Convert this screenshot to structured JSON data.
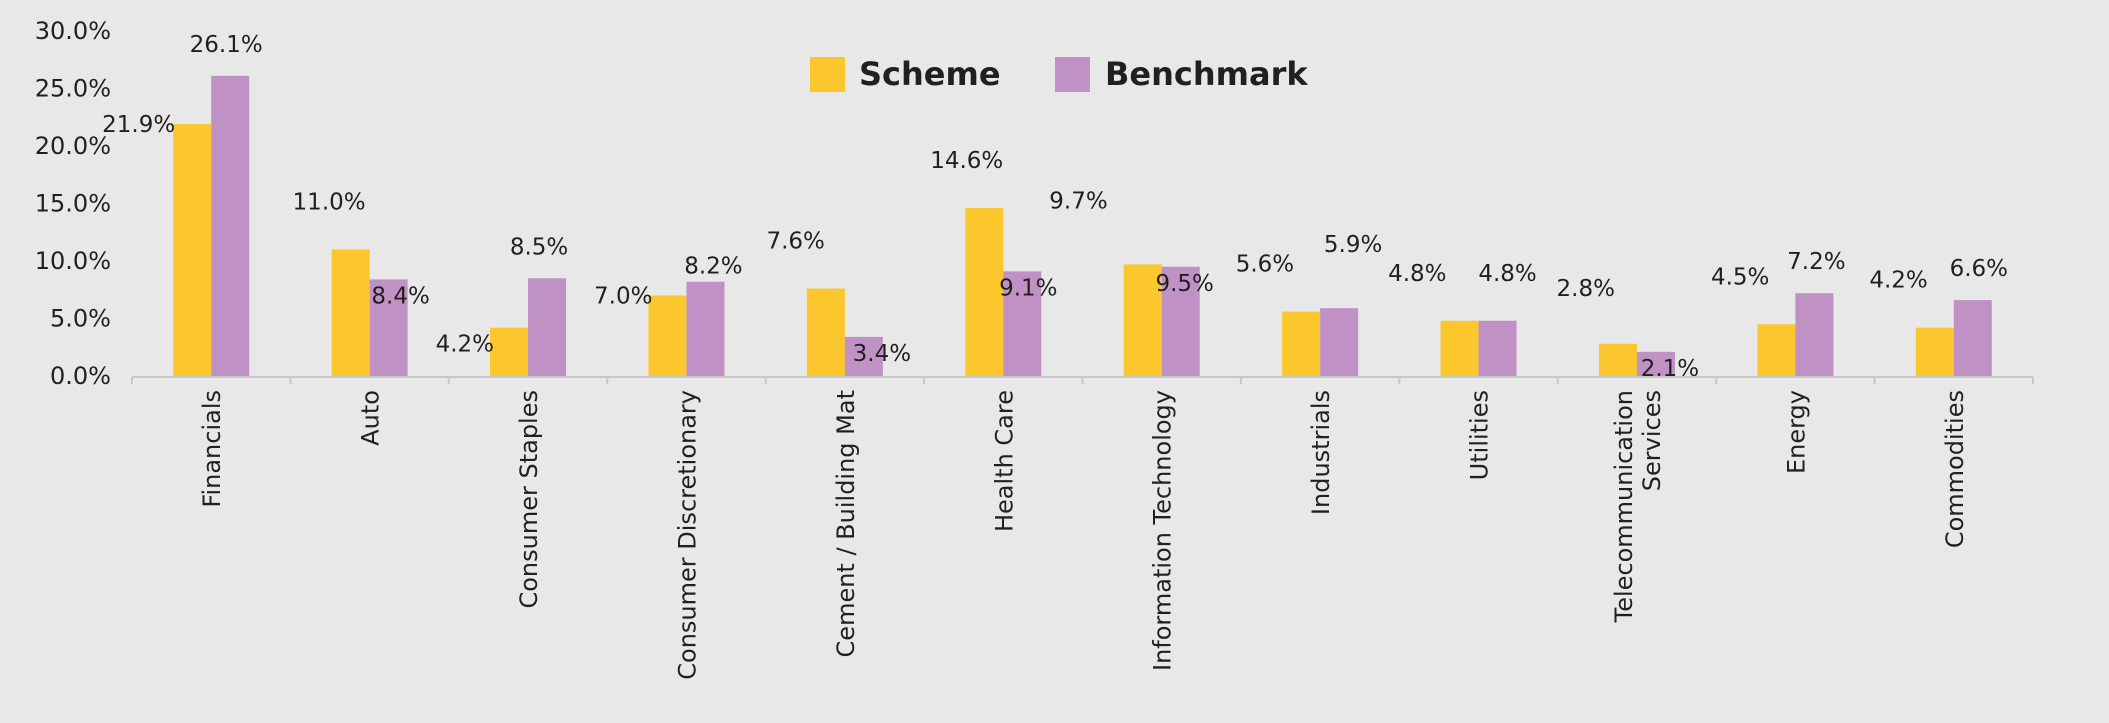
{
  "chart_data": {
    "type": "bar",
    "categories": [
      "Financials",
      "Auto",
      "Consumer Staples",
      "Consumer Discretionary",
      "Cement / Building Mat",
      "Health Care",
      "Information Technology",
      "Industrials",
      "Utilities",
      "Telecommunication Services",
      "Energy",
      "Commodities"
    ],
    "series": [
      {
        "name": "Scheme",
        "color": "#fcc62d",
        "values": [
          21.9,
          11.0,
          4.2,
          7.0,
          7.6,
          14.6,
          9.7,
          5.6,
          4.8,
          2.8,
          4.5,
          4.2
        ],
        "labels": [
          "21.9%",
          "11.0%",
          "4.2%",
          "7.0%",
          "7.6%",
          "14.6%",
          "9.7%",
          "5.6%",
          "4.8%",
          "2.8%",
          "4.5%",
          "4.2%"
        ]
      },
      {
        "name": "Benchmark",
        "color": "#c091c5",
        "values": [
          26.1,
          8.4,
          8.5,
          8.2,
          3.4,
          9.1,
          9.5,
          5.9,
          4.8,
          2.1,
          7.2,
          6.6
        ],
        "labels": [
          "26.1%",
          "8.4%",
          "8.5%",
          "8.2%",
          "3.4%",
          "9.1%",
          "9.5%",
          "5.9%",
          "4.8%",
          "2.1%",
          "7.2%",
          "6.6%"
        ]
      }
    ],
    "y_ticks": [
      "0.0%",
      "5.0%",
      "10.0%",
      "15.0%",
      "20.0%",
      "25.0%",
      "30.0%"
    ],
    "ylim": [
      0,
      30
    ],
    "grid": false,
    "legend_position": "top-center",
    "axis_color": "#c8c8c8"
  }
}
